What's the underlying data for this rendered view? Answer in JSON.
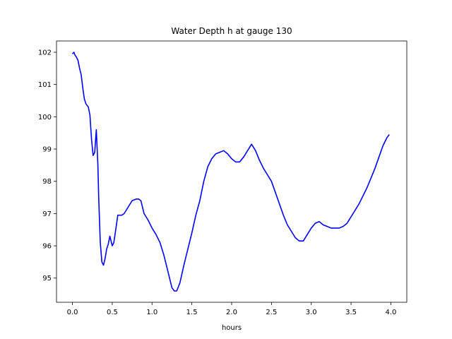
{
  "chart_data": {
    "type": "line",
    "title": "Water Depth h at gauge 130",
    "xlabel": "hours",
    "ylabel": "",
    "xlim": [
      -0.2,
      4.2
    ],
    "ylim": [
      94.25,
      102.35
    ],
    "xticks": [
      0.0,
      0.5,
      1.0,
      1.5,
      2.0,
      2.5,
      3.0,
      3.5,
      4.0
    ],
    "xtick_labels": [
      "0.0",
      "0.5",
      "1.0",
      "1.5",
      "2.0",
      "2.5",
      "3.0",
      "3.5",
      "4.0"
    ],
    "yticks": [
      95,
      96,
      97,
      98,
      99,
      100,
      101,
      102
    ],
    "ytick_labels": [
      "95",
      "96",
      "97",
      "98",
      "99",
      "100",
      "101",
      "102"
    ],
    "grid": false,
    "legend": "none",
    "series": [
      {
        "color": "#0000ff",
        "x": [
          0.0,
          0.02,
          0.03,
          0.05,
          0.07,
          0.09,
          0.11,
          0.13,
          0.15,
          0.17,
          0.2,
          0.22,
          0.24,
          0.26,
          0.28,
          0.3,
          0.32,
          0.33,
          0.35,
          0.37,
          0.39,
          0.41,
          0.43,
          0.45,
          0.47,
          0.5,
          0.52,
          0.55,
          0.57,
          0.59,
          0.62,
          0.65,
          0.7,
          0.75,
          0.8,
          0.83,
          0.86,
          0.9,
          0.95,
          1.0,
          1.05,
          1.1,
          1.15,
          1.2,
          1.25,
          1.28,
          1.31,
          1.35,
          1.4,
          1.45,
          1.5,
          1.55,
          1.6,
          1.65,
          1.7,
          1.75,
          1.8,
          1.85,
          1.9,
          1.95,
          2.0,
          2.05,
          2.1,
          2.15,
          2.2,
          2.25,
          2.3,
          2.35,
          2.4,
          2.45,
          2.5,
          2.55,
          2.6,
          2.65,
          2.7,
          2.75,
          2.8,
          2.85,
          2.9,
          2.95,
          3.0,
          3.05,
          3.1,
          3.15,
          3.2,
          3.25,
          3.3,
          3.35,
          3.4,
          3.45,
          3.5,
          3.55,
          3.6,
          3.65,
          3.7,
          3.75,
          3.8,
          3.85,
          3.9,
          3.95,
          3.98
        ],
        "y": [
          101.95,
          102.0,
          101.92,
          101.85,
          101.75,
          101.5,
          101.3,
          100.9,
          100.55,
          100.4,
          100.3,
          100.05,
          99.3,
          98.8,
          98.9,
          99.6,
          98.5,
          97.5,
          96.1,
          95.5,
          95.4,
          95.6,
          95.9,
          96.05,
          96.3,
          96.0,
          96.1,
          96.6,
          96.95,
          96.95,
          96.95,
          97.0,
          97.2,
          97.4,
          97.45,
          97.45,
          97.4,
          97.0,
          96.8,
          96.55,
          96.35,
          96.1,
          95.7,
          95.2,
          94.7,
          94.6,
          94.6,
          94.85,
          95.4,
          95.9,
          96.4,
          96.95,
          97.4,
          98.0,
          98.45,
          98.7,
          98.85,
          98.9,
          98.95,
          98.85,
          98.7,
          98.6,
          98.6,
          98.75,
          98.95,
          99.15,
          98.95,
          98.65,
          98.4,
          98.2,
          98.0,
          97.65,
          97.3,
          96.95,
          96.65,
          96.45,
          96.25,
          96.15,
          96.15,
          96.35,
          96.55,
          96.7,
          96.75,
          96.65,
          96.6,
          96.55,
          96.55,
          96.55,
          96.6,
          96.7,
          96.9,
          97.1,
          97.3,
          97.55,
          97.8,
          98.1,
          98.4,
          98.75,
          99.1,
          99.35,
          99.45
        ]
      }
    ]
  }
}
